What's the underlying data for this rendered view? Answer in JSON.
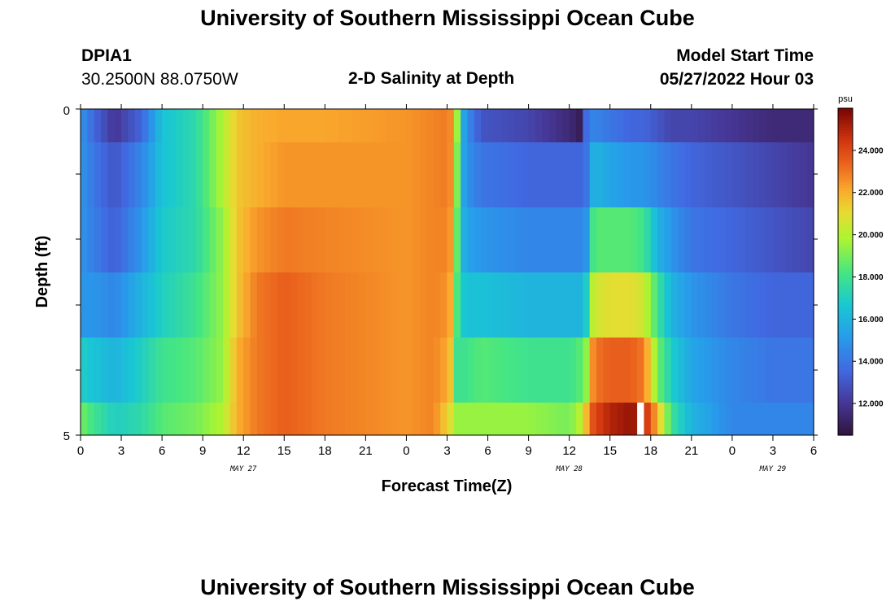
{
  "page": {
    "title": "University of Southern Mississippi Ocean Cube",
    "footer_title": "University of Southern Mississippi Ocean Cube",
    "station": "DPIA1",
    "coordinates": "30.2500N  88.0750W",
    "subtitle": "2-D Salinity at Depth",
    "model_start_label": "Model Start Time",
    "model_start_value": "05/27/2022 Hour 03"
  },
  "chart_data": {
    "type": "heatmap",
    "title": "2-D Salinity at Depth",
    "xlabel": "Forecast Time(Z)",
    "ylabel": "Depth (ft)",
    "x_tick_labels": [
      "0",
      "3",
      "6",
      "9",
      "12",
      "15",
      "18",
      "21",
      "0",
      "3",
      "6",
      "9",
      "12",
      "15",
      "18",
      "21",
      "0",
      "3",
      "6"
    ],
    "date_labels": [
      {
        "text": "MAY 27",
        "at_tick": 4
      },
      {
        "text": "MAY 28",
        "at_tick": 12
      },
      {
        "text": "MAY 29",
        "at_tick": 17
      }
    ],
    "y_tick_labels": [
      "0",
      "5"
    ],
    "y_range": [
      0,
      5
    ],
    "colorbar": {
      "unit": "psu",
      "min": 10.5,
      "max": 26.0,
      "tick_labels": [
        "12.000",
        "14.000",
        "16.000",
        "18.000",
        "20.000",
        "22.000",
        "24.000"
      ],
      "tick_values": [
        12,
        14,
        16,
        18,
        20,
        22,
        24
      ]
    },
    "hours": [
      0,
      3,
      6,
      9,
      12,
      15,
      18,
      21,
      24,
      27,
      30,
      33,
      36,
      39,
      42,
      45,
      48,
      51,
      54
    ],
    "depth_layers": [
      "0-0.5",
      "0.5-1.5",
      "1.5-2.5",
      "2.5-3.5",
      "3.5-4.5",
      "4.5-5"
    ],
    "anchors": [
      [
        0,
        15.0,
        15.0,
        15.0,
        15.0,
        17.0,
        19.0
      ],
      [
        1,
        13.5,
        14.0,
        14.2,
        15.0,
        16.5,
        18.0
      ],
      [
        2.5,
        12.0,
        13.0,
        13.3,
        14.5,
        16.0,
        17.0
      ],
      [
        4.5,
        13.5,
        14.5,
        15.0,
        16.0,
        17.0,
        17.5
      ],
      [
        6,
        16.5,
        16.5,
        16.8,
        17.0,
        18.0,
        18.5
      ],
      [
        8.5,
        17.5,
        17.5,
        17.5,
        18.0,
        18.5,
        19.0
      ],
      [
        10.5,
        20.0,
        20.0,
        19.5,
        19.5,
        19.5,
        20.0
      ],
      [
        11.5,
        21.5,
        21.5,
        21.5,
        21.5,
        22.0,
        22.0
      ],
      [
        13,
        22.0,
        22.0,
        22.5,
        23.0,
        23.0,
        23.0
      ],
      [
        15,
        22.2,
        22.5,
        23.0,
        23.5,
        23.5,
        23.5
      ],
      [
        18,
        22.2,
        22.5,
        22.8,
        23.0,
        23.0,
        23.0
      ],
      [
        24,
        22.5,
        22.5,
        22.5,
        22.5,
        22.5,
        22.5
      ],
      [
        26,
        22.8,
        22.8,
        22.8,
        22.8,
        22.8,
        22.8
      ],
      [
        27.2,
        23.0,
        23.0,
        22.8,
        22.5,
        22.0,
        21.0
      ],
      [
        27.7,
        20.0,
        19.5,
        19.0,
        18.5,
        18.0,
        19.5
      ],
      [
        28.3,
        15.0,
        15.0,
        15.5,
        16.5,
        18.0,
        19.5
      ],
      [
        29.5,
        13.0,
        14.0,
        15.0,
        16.5,
        18.5,
        19.5
      ],
      [
        33,
        12.5,
        13.5,
        14.5,
        16.0,
        18.0,
        19.5
      ],
      [
        36,
        11.5,
        13.5,
        14.5,
        16.0,
        18.0,
        19.0
      ],
      [
        36.8,
        11.0,
        13.5,
        14.5,
        16.0,
        18.5,
        20.0
      ],
      [
        37.3,
        14.0,
        14.0,
        15.0,
        17.0,
        19.5,
        22.0
      ],
      [
        37.8,
        14.5,
        16.0,
        18.5,
        20.5,
        23.0,
        24.0
      ],
      [
        39,
        14.0,
        15.5,
        18.5,
        21.0,
        23.5,
        25.0
      ],
      [
        40.5,
        13.5,
        15.0,
        18.5,
        21.0,
        23.5,
        25.5
      ],
      [
        41.5,
        13.5,
        15.0,
        18.0,
        20.5,
        23.0,
        25.0
      ],
      [
        42.5,
        13.0,
        14.5,
        16.0,
        18.0,
        19.0,
        22.0
      ],
      [
        43.5,
        12.5,
        14.0,
        15.0,
        16.0,
        17.0,
        18.0
      ],
      [
        45,
        12.5,
        13.5,
        14.0,
        15.0,
        15.5,
        16.0
      ],
      [
        48,
        12.0,
        13.0,
        13.5,
        14.0,
        14.5,
        14.5
      ],
      [
        51,
        11.5,
        12.5,
        13.0,
        13.5,
        14.0,
        14.5
      ],
      [
        54,
        11.5,
        12.0,
        12.5,
        13.5,
        14.0,
        14.5
      ]
    ],
    "missing_cell": {
      "hour": 41,
      "depth_layer": 5
    }
  }
}
